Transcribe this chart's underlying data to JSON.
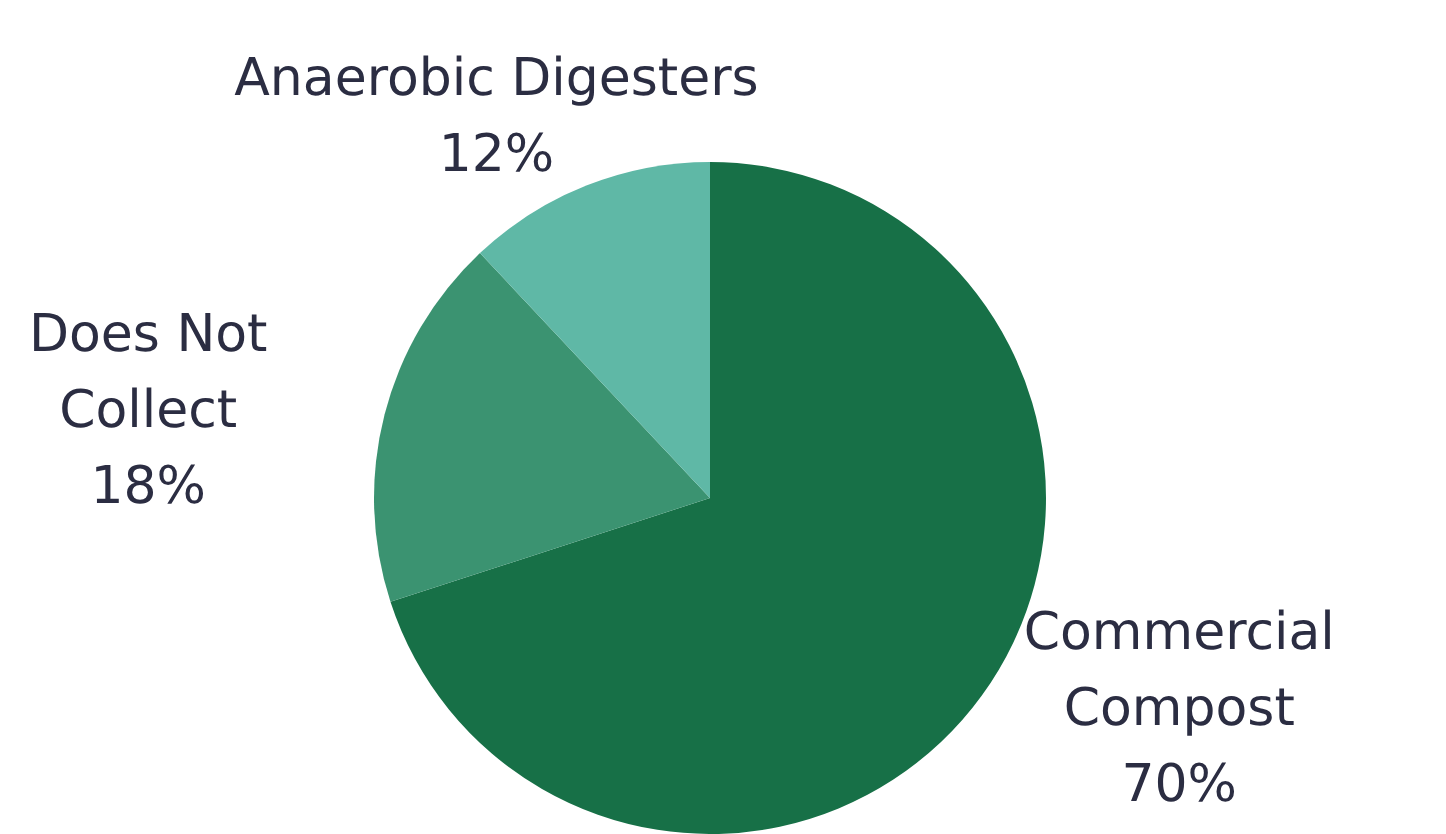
{
  "chart_data": {
    "type": "pie",
    "categories": [
      "Commercial Compost",
      "Does Not Collect",
      "Anaerobic Digesters"
    ],
    "values": [
      70,
      18,
      12
    ],
    "colors": [
      "#177047",
      "#3b9371",
      "#5fb8a6"
    ],
    "value_labels": [
      "70%",
      "18%",
      "12%"
    ]
  }
}
